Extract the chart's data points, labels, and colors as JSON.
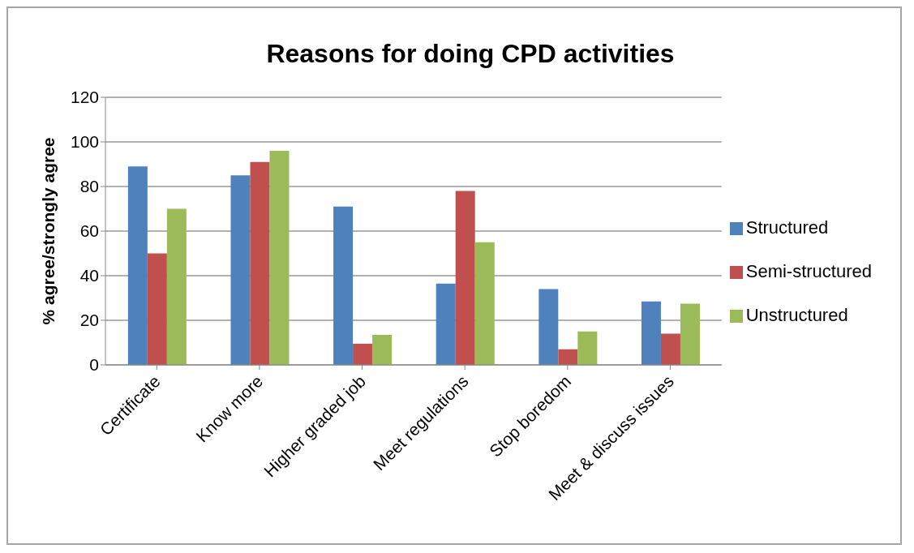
{
  "chart_data": {
    "type": "bar",
    "title": "Reasons for doing CPD activities",
    "ylabel": "% agree/strongly agree",
    "categories": [
      "Certificate",
      "Know more",
      "Higher graded job",
      "Meet regulations",
      "Stop boredom",
      "Meet & discuss issues"
    ],
    "series": [
      {
        "name": "Structured",
        "color": "#4f81bd",
        "values": [
          89,
          85,
          71,
          36.5,
          34,
          28.5
        ]
      },
      {
        "name": "Semi-structured",
        "color": "#c0504d",
        "values": [
          50,
          91,
          9.5,
          78,
          7,
          14
        ]
      },
      {
        "name": "Unstructured",
        "color": "#9bbb59",
        "values": [
          70,
          96,
          13.5,
          55,
          15,
          27.5
        ]
      }
    ],
    "ylim": [
      0,
      120
    ],
    "yticks": [
      0,
      20,
      40,
      60,
      80,
      100,
      120
    ],
    "grid": "y",
    "legend": "right"
  }
}
